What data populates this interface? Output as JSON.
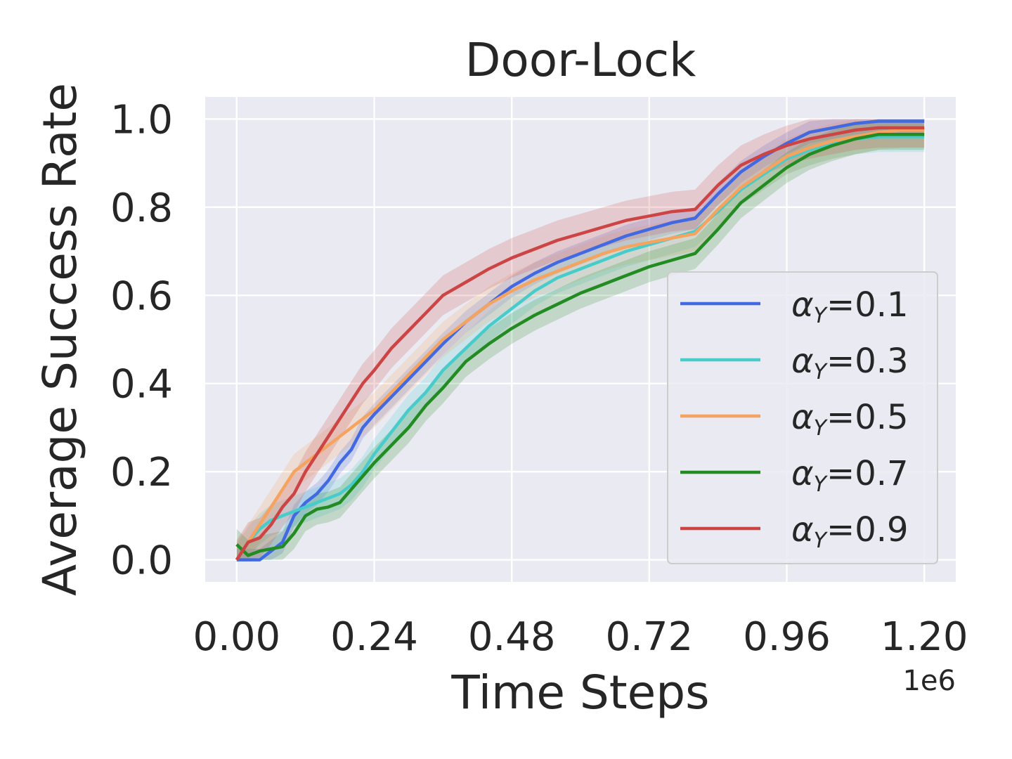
{
  "chart_data": {
    "type": "line",
    "title": "Door-Lock",
    "xlabel": "Time Steps",
    "ylabel": "Average Success Rate",
    "x_offset_label": "1e6",
    "xlim": [
      -0.055,
      1.255
    ],
    "ylim": [
      -0.05,
      1.05
    ],
    "x_ticks": [
      0.0,
      0.24,
      0.48,
      0.72,
      0.96,
      1.2
    ],
    "x_tick_labels": [
      "0.00",
      "0.24",
      "0.48",
      "0.72",
      "0.96",
      "1.20"
    ],
    "y_ticks": [
      0.0,
      0.2,
      0.4,
      0.6,
      0.8,
      1.0
    ],
    "y_tick_labels": [
      "0.0",
      "0.2",
      "0.4",
      "0.6",
      "0.8",
      "1.0"
    ],
    "grid": true,
    "legend_position": "lower-right",
    "x": [
      0.0,
      0.02,
      0.04,
      0.06,
      0.08,
      0.1,
      0.12,
      0.14,
      0.16,
      0.18,
      0.2,
      0.22,
      0.24,
      0.27,
      0.3,
      0.33,
      0.36,
      0.4,
      0.44,
      0.48,
      0.52,
      0.56,
      0.6,
      0.64,
      0.68,
      0.72,
      0.76,
      0.8,
      0.84,
      0.88,
      0.92,
      0.96,
      1.0,
      1.04,
      1.08,
      1.12,
      1.16,
      1.2
    ],
    "series": [
      {
        "name": "α_Y=0.1",
        "color": "#4169e1",
        "band": 0.025,
        "values": [
          0.0,
          0.0,
          0.0,
          0.02,
          0.04,
          0.1,
          0.13,
          0.15,
          0.18,
          0.22,
          0.25,
          0.3,
          0.33,
          0.37,
          0.41,
          0.45,
          0.49,
          0.54,
          0.58,
          0.62,
          0.65,
          0.675,
          0.695,
          0.715,
          0.735,
          0.75,
          0.765,
          0.775,
          0.83,
          0.88,
          0.915,
          0.945,
          0.97,
          0.98,
          0.99,
          0.995,
          0.995,
          0.995
        ]
      },
      {
        "name": "α_Y=0.3",
        "color": "#48cbcb",
        "band": 0.035,
        "values": [
          0.0,
          0.04,
          0.07,
          0.09,
          0.1,
          0.11,
          0.12,
          0.13,
          0.14,
          0.15,
          0.17,
          0.2,
          0.24,
          0.29,
          0.34,
          0.38,
          0.43,
          0.48,
          0.53,
          0.57,
          0.61,
          0.64,
          0.66,
          0.68,
          0.7,
          0.715,
          0.73,
          0.745,
          0.79,
          0.84,
          0.875,
          0.91,
          0.93,
          0.945,
          0.955,
          0.96,
          0.96,
          0.96
        ]
      },
      {
        "name": "α_Y=0.5",
        "color": "#f4a460",
        "band": 0.04,
        "values": [
          0.0,
          0.04,
          0.08,
          0.12,
          0.16,
          0.2,
          0.22,
          0.24,
          0.26,
          0.28,
          0.3,
          0.32,
          0.34,
          0.38,
          0.42,
          0.46,
          0.5,
          0.54,
          0.58,
          0.61,
          0.635,
          0.655,
          0.675,
          0.695,
          0.71,
          0.72,
          0.73,
          0.74,
          0.795,
          0.845,
          0.88,
          0.915,
          0.935,
          0.95,
          0.96,
          0.97,
          0.975,
          0.975
        ]
      },
      {
        "name": "α_Y=0.7",
        "color": "#228b22",
        "band": 0.035,
        "values": [
          0.035,
          0.01,
          0.02,
          0.025,
          0.03,
          0.06,
          0.1,
          0.115,
          0.12,
          0.13,
          0.16,
          0.19,
          0.22,
          0.26,
          0.3,
          0.35,
          0.39,
          0.45,
          0.49,
          0.525,
          0.555,
          0.58,
          0.605,
          0.625,
          0.645,
          0.665,
          0.68,
          0.695,
          0.75,
          0.81,
          0.85,
          0.89,
          0.92,
          0.94,
          0.955,
          0.965,
          0.965,
          0.965
        ]
      },
      {
        "name": "α_Y=0.9",
        "color": "#cc4444",
        "band": 0.045,
        "values": [
          0.0,
          0.04,
          0.05,
          0.08,
          0.12,
          0.15,
          0.2,
          0.24,
          0.28,
          0.32,
          0.36,
          0.4,
          0.43,
          0.48,
          0.52,
          0.56,
          0.6,
          0.63,
          0.66,
          0.685,
          0.705,
          0.725,
          0.74,
          0.755,
          0.77,
          0.78,
          0.79,
          0.795,
          0.85,
          0.895,
          0.92,
          0.94,
          0.955,
          0.965,
          0.975,
          0.98,
          0.98,
          0.98
        ]
      }
    ]
  }
}
